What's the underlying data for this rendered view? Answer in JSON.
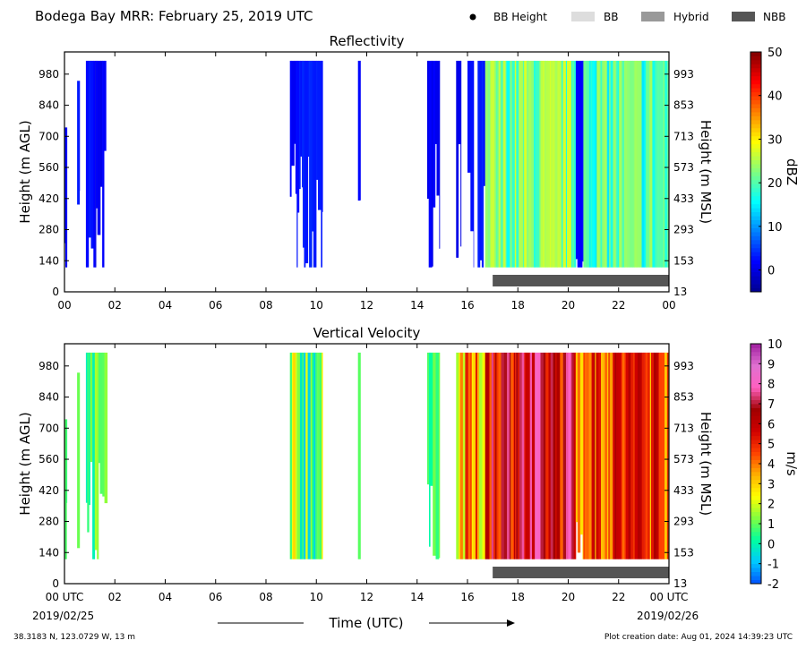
{
  "header": {
    "title": "Bodega Bay MRR:  February 25, 2019 UTC",
    "legend": [
      {
        "label": "BB Height",
        "swatch": "dot",
        "color": "#000000"
      },
      {
        "label": "BB",
        "swatch": "box",
        "color": "#dddddd"
      },
      {
        "label": "Hybrid",
        "swatch": "box",
        "color": "#999999"
      },
      {
        "label": "NBB",
        "swatch": "box",
        "color": "#555555"
      }
    ]
  },
  "footer": {
    "location": "38.3183 N, 123.0729 W, 13 m",
    "creation": "Plot creation date: Aug 01, 2024 14:39:23 UTC",
    "xlabel": "Time (UTC)",
    "start_date": "2019/02/25",
    "end_date": "2019/02/26"
  },
  "chart_data": [
    {
      "type": "heatmap",
      "title": "Reflectivity",
      "ylabel_left": "Height (m AGL)",
      "ylabel_right": "Height (m MSL)",
      "colorbar_label": "dBZ",
      "x_ticks_top_panel": [
        "00",
        "02",
        "04",
        "06",
        "08",
        "10",
        "12",
        "14",
        "16",
        "18",
        "20",
        "22",
        "00"
      ],
      "x_range_hours": [
        0,
        24
      ],
      "y_ticks_agl": [
        0,
        140,
        280,
        420,
        560,
        700,
        840,
        980
      ],
      "y_ticks_msl": [
        13,
        153,
        293,
        433,
        573,
        713,
        853,
        993
      ],
      "y_range_m": [
        0,
        1080
      ],
      "colorbar_range": [
        -5,
        50
      ],
      "colorbar_ticks": [
        0,
        10,
        20,
        30,
        40,
        50
      ],
      "colormap": [
        "#00008f",
        "#0000ff",
        "#0080ff",
        "#00ffff",
        "#80ff80",
        "#ffff00",
        "#ff8000",
        "#ff0000",
        "#800000"
      ],
      "echoes": [
        {
          "start": 0.0,
          "end": 0.1,
          "top": 740,
          "value": 2
        },
        {
          "start": 0.5,
          "end": 0.6,
          "top": 950,
          "value": 3
        },
        {
          "start": 0.85,
          "end": 1.15,
          "top": 1040,
          "value": 3
        },
        {
          "start": 1.15,
          "end": 1.65,
          "top": 1040,
          "value": 1
        },
        {
          "start": 8.95,
          "end": 9.25,
          "top": 1040,
          "value": 2
        },
        {
          "start": 9.25,
          "end": 10.25,
          "top": 1040,
          "value": 3
        },
        {
          "start": 11.65,
          "end": 11.75,
          "top": 1040,
          "value": 2
        },
        {
          "start": 14.4,
          "end": 14.55,
          "top": 1040,
          "value": 1
        },
        {
          "start": 14.55,
          "end": 14.9,
          "top": 1040,
          "value": 1
        },
        {
          "start": 15.55,
          "end": 15.75,
          "top": 1040,
          "value": 1
        },
        {
          "start": 16.0,
          "end": 16.25,
          "top": 1040,
          "value": 2
        },
        {
          "start": 16.4,
          "end": 16.7,
          "top": 1040,
          "value": 3
        },
        {
          "start": 16.7,
          "end": 20.3,
          "top": 1040,
          "value": 22
        },
        {
          "start": 20.3,
          "end": 20.6,
          "top": 1040,
          "value": 2
        },
        {
          "start": 20.6,
          "end": 24.0,
          "top": 1040,
          "value": 20
        }
      ],
      "bright_band": {
        "start": 17.0,
        "end": 24.0,
        "class": "NBB"
      }
    },
    {
      "type": "heatmap",
      "title": "Vertical Velocity",
      "ylabel_left": "Height (m AGL)",
      "ylabel_right": "Height (m MSL)",
      "colorbar_label": "m/s",
      "x_ticks": [
        "00 UTC",
        "02",
        "04",
        "06",
        "08",
        "10",
        "12",
        "14",
        "16",
        "18",
        "20",
        "22",
        "00 UTC"
      ],
      "x_range_hours": [
        0,
        24
      ],
      "y_ticks_agl": [
        0,
        140,
        280,
        420,
        560,
        700,
        840,
        980
      ],
      "y_ticks_msl": [
        13,
        153,
        293,
        433,
        573,
        713,
        853,
        993
      ],
      "y_range_m": [
        0,
        1080
      ],
      "colorbar_range": [
        -2,
        10
      ],
      "colorbar_ticks": [
        -2,
        -1,
        0,
        1,
        2,
        3,
        4,
        5,
        6,
        7,
        8,
        9,
        10
      ],
      "colormap": [
        "#0050ff",
        "#00c8ff",
        "#00ffa0",
        "#80ff40",
        "#ffff00",
        "#ffb000",
        "#ff4000",
        "#d00000",
        "#a00000",
        "#ff60c0",
        "#e070d0",
        "#a020a0"
      ],
      "echoes": [
        {
          "start": 0.0,
          "end": 0.1,
          "top": 740,
          "value": 1.2
        },
        {
          "start": 0.5,
          "end": 0.6,
          "top": 950,
          "value": 0.8
        },
        {
          "start": 0.85,
          "end": 1.7,
          "top": 1040,
          "value": 0.7
        },
        {
          "start": 8.95,
          "end": 10.25,
          "top": 1040,
          "value": 1.0
        },
        {
          "start": 11.65,
          "end": 11.75,
          "top": 1040,
          "value": 1.0
        },
        {
          "start": 14.4,
          "end": 14.9,
          "top": 1040,
          "value": 0.6
        },
        {
          "start": 15.55,
          "end": 16.7,
          "top": 1040,
          "value": 3.2
        },
        {
          "start": 16.7,
          "end": 20.3,
          "top": 1040,
          "value": 6.2
        },
        {
          "start": 20.3,
          "end": 20.6,
          "top": 1040,
          "value": 3.5
        },
        {
          "start": 20.6,
          "end": 24.0,
          "top": 1040,
          "value": 5.0
        }
      ],
      "bright_band": {
        "start": 17.0,
        "end": 24.0,
        "class": "NBB"
      }
    }
  ]
}
